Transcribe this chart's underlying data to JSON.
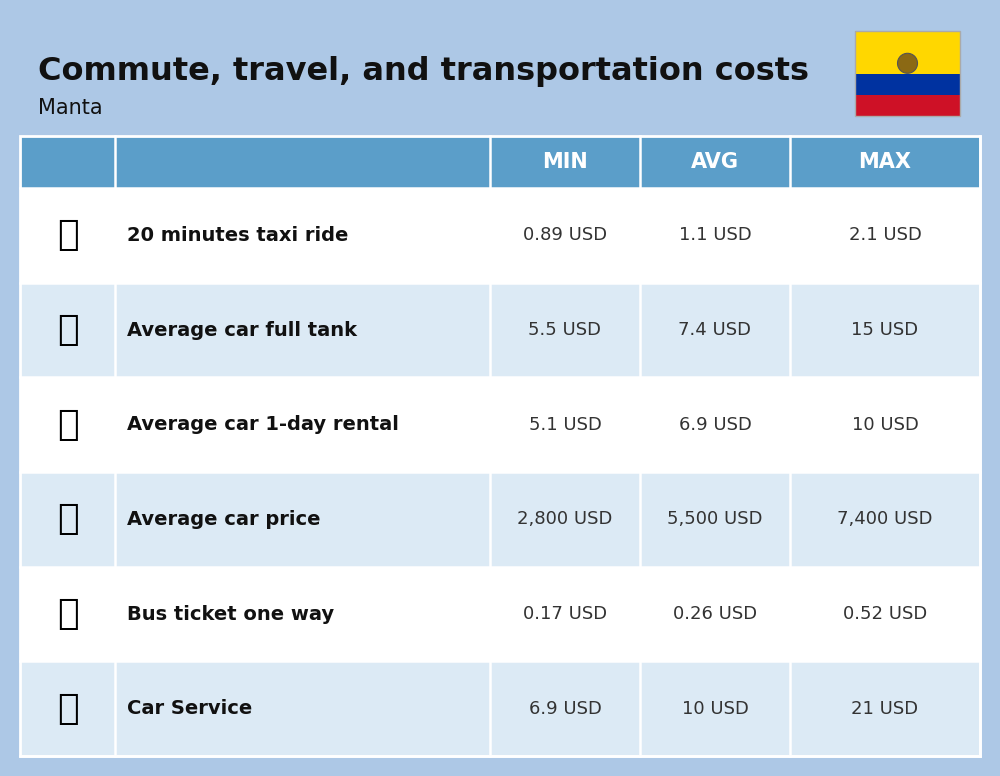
{
  "title": "Commute, travel, and transportation costs",
  "subtitle": "Manta",
  "bg_color": "#adc8e6",
  "header_color": "#5b9ec9",
  "header_text_color": "#ffffff",
  "label_color": "#111111",
  "value_color": "#333333",
  "columns": [
    "MIN",
    "AVG",
    "MAX"
  ],
  "rows": [
    {
      "label": "20 minutes taxi ride",
      "min": "0.89 USD",
      "avg": "1.1 USD",
      "max": "2.1 USD"
    },
    {
      "label": "Average car full tank",
      "min": "5.5 USD",
      "avg": "7.4 USD",
      "max": "15 USD"
    },
    {
      "label": "Average car 1-day rental",
      "min": "5.1 USD",
      "avg": "6.9 USD",
      "max": "10 USD"
    },
    {
      "label": "Average car price",
      "min": "2,800 USD",
      "avg": "5,500 USD",
      "max": "7,400 USD"
    },
    {
      "label": "Bus ticket one way",
      "min": "0.17 USD",
      "avg": "0.26 USD",
      "max": "0.52 USD"
    },
    {
      "label": "Car Service",
      "min": "6.9 USD",
      "avg": "10 USD",
      "max": "21 USD"
    }
  ],
  "row_colors": [
    "#ffffff",
    "#dceaf5"
  ],
  "title_fontsize": 23,
  "subtitle_fontsize": 15,
  "header_fontsize": 15,
  "label_fontsize": 14,
  "value_fontsize": 13,
  "flag_yellow": "#FFD700",
  "flag_blue": "#0032A0",
  "flag_red": "#CE1126"
}
